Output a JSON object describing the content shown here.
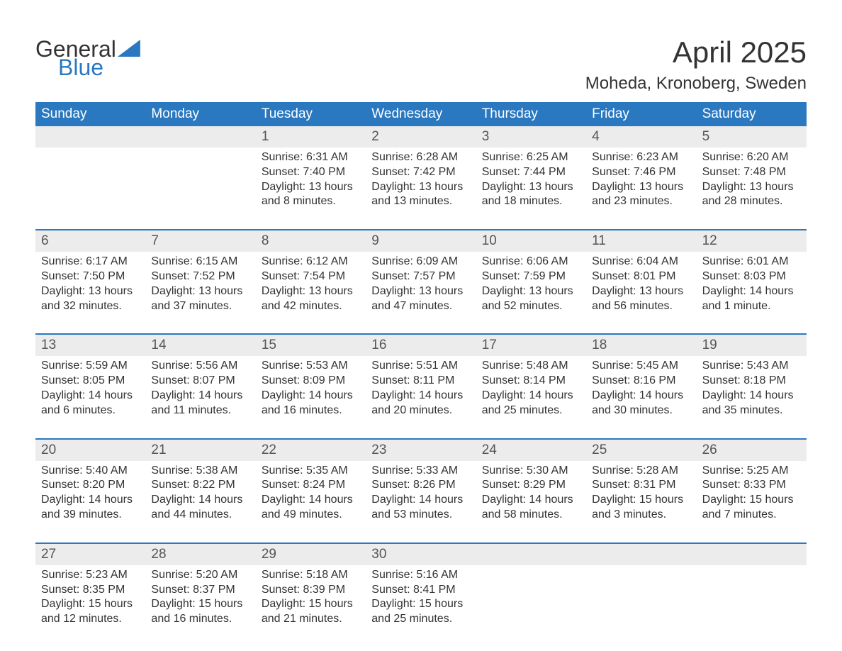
{
  "logo": {
    "word1": "General",
    "word2": "Blue"
  },
  "title": "April 2025",
  "location": "Moheda, Kronoberg, Sweden",
  "colors": {
    "header_bg": "#2a78c0",
    "header_text": "#ffffff",
    "daynum_bg": "#ececec",
    "row_border": "#2a78c0",
    "body_text": "#333333",
    "background": "#ffffff"
  },
  "weekdays": [
    "Sunday",
    "Monday",
    "Tuesday",
    "Wednesday",
    "Thursday",
    "Friday",
    "Saturday"
  ],
  "weeks": [
    [
      {
        "num": "",
        "sunrise": "",
        "sunset": "",
        "daylight": ""
      },
      {
        "num": "",
        "sunrise": "",
        "sunset": "",
        "daylight": ""
      },
      {
        "num": "1",
        "sunrise": "Sunrise: 6:31 AM",
        "sunset": "Sunset: 7:40 PM",
        "daylight": "Daylight: 13 hours and 8 minutes."
      },
      {
        "num": "2",
        "sunrise": "Sunrise: 6:28 AM",
        "sunset": "Sunset: 7:42 PM",
        "daylight": "Daylight: 13 hours and 13 minutes."
      },
      {
        "num": "3",
        "sunrise": "Sunrise: 6:25 AM",
        "sunset": "Sunset: 7:44 PM",
        "daylight": "Daylight: 13 hours and 18 minutes."
      },
      {
        "num": "4",
        "sunrise": "Sunrise: 6:23 AM",
        "sunset": "Sunset: 7:46 PM",
        "daylight": "Daylight: 13 hours and 23 minutes."
      },
      {
        "num": "5",
        "sunrise": "Sunrise: 6:20 AM",
        "sunset": "Sunset: 7:48 PM",
        "daylight": "Daylight: 13 hours and 28 minutes."
      }
    ],
    [
      {
        "num": "6",
        "sunrise": "Sunrise: 6:17 AM",
        "sunset": "Sunset: 7:50 PM",
        "daylight": "Daylight: 13 hours and 32 minutes."
      },
      {
        "num": "7",
        "sunrise": "Sunrise: 6:15 AM",
        "sunset": "Sunset: 7:52 PM",
        "daylight": "Daylight: 13 hours and 37 minutes."
      },
      {
        "num": "8",
        "sunrise": "Sunrise: 6:12 AM",
        "sunset": "Sunset: 7:54 PM",
        "daylight": "Daylight: 13 hours and 42 minutes."
      },
      {
        "num": "9",
        "sunrise": "Sunrise: 6:09 AM",
        "sunset": "Sunset: 7:57 PM",
        "daylight": "Daylight: 13 hours and 47 minutes."
      },
      {
        "num": "10",
        "sunrise": "Sunrise: 6:06 AM",
        "sunset": "Sunset: 7:59 PM",
        "daylight": "Daylight: 13 hours and 52 minutes."
      },
      {
        "num": "11",
        "sunrise": "Sunrise: 6:04 AM",
        "sunset": "Sunset: 8:01 PM",
        "daylight": "Daylight: 13 hours and 56 minutes."
      },
      {
        "num": "12",
        "sunrise": "Sunrise: 6:01 AM",
        "sunset": "Sunset: 8:03 PM",
        "daylight": "Daylight: 14 hours and 1 minute."
      }
    ],
    [
      {
        "num": "13",
        "sunrise": "Sunrise: 5:59 AM",
        "sunset": "Sunset: 8:05 PM",
        "daylight": "Daylight: 14 hours and 6 minutes."
      },
      {
        "num": "14",
        "sunrise": "Sunrise: 5:56 AM",
        "sunset": "Sunset: 8:07 PM",
        "daylight": "Daylight: 14 hours and 11 minutes."
      },
      {
        "num": "15",
        "sunrise": "Sunrise: 5:53 AM",
        "sunset": "Sunset: 8:09 PM",
        "daylight": "Daylight: 14 hours and 16 minutes."
      },
      {
        "num": "16",
        "sunrise": "Sunrise: 5:51 AM",
        "sunset": "Sunset: 8:11 PM",
        "daylight": "Daylight: 14 hours and 20 minutes."
      },
      {
        "num": "17",
        "sunrise": "Sunrise: 5:48 AM",
        "sunset": "Sunset: 8:14 PM",
        "daylight": "Daylight: 14 hours and 25 minutes."
      },
      {
        "num": "18",
        "sunrise": "Sunrise: 5:45 AM",
        "sunset": "Sunset: 8:16 PM",
        "daylight": "Daylight: 14 hours and 30 minutes."
      },
      {
        "num": "19",
        "sunrise": "Sunrise: 5:43 AM",
        "sunset": "Sunset: 8:18 PM",
        "daylight": "Daylight: 14 hours and 35 minutes."
      }
    ],
    [
      {
        "num": "20",
        "sunrise": "Sunrise: 5:40 AM",
        "sunset": "Sunset: 8:20 PM",
        "daylight": "Daylight: 14 hours and 39 minutes."
      },
      {
        "num": "21",
        "sunrise": "Sunrise: 5:38 AM",
        "sunset": "Sunset: 8:22 PM",
        "daylight": "Daylight: 14 hours and 44 minutes."
      },
      {
        "num": "22",
        "sunrise": "Sunrise: 5:35 AM",
        "sunset": "Sunset: 8:24 PM",
        "daylight": "Daylight: 14 hours and 49 minutes."
      },
      {
        "num": "23",
        "sunrise": "Sunrise: 5:33 AM",
        "sunset": "Sunset: 8:26 PM",
        "daylight": "Daylight: 14 hours and 53 minutes."
      },
      {
        "num": "24",
        "sunrise": "Sunrise: 5:30 AM",
        "sunset": "Sunset: 8:29 PM",
        "daylight": "Daylight: 14 hours and 58 minutes."
      },
      {
        "num": "25",
        "sunrise": "Sunrise: 5:28 AM",
        "sunset": "Sunset: 8:31 PM",
        "daylight": "Daylight: 15 hours and 3 minutes."
      },
      {
        "num": "26",
        "sunrise": "Sunrise: 5:25 AM",
        "sunset": "Sunset: 8:33 PM",
        "daylight": "Daylight: 15 hours and 7 minutes."
      }
    ],
    [
      {
        "num": "27",
        "sunrise": "Sunrise: 5:23 AM",
        "sunset": "Sunset: 8:35 PM",
        "daylight": "Daylight: 15 hours and 12 minutes."
      },
      {
        "num": "28",
        "sunrise": "Sunrise: 5:20 AM",
        "sunset": "Sunset: 8:37 PM",
        "daylight": "Daylight: 15 hours and 16 minutes."
      },
      {
        "num": "29",
        "sunrise": "Sunrise: 5:18 AM",
        "sunset": "Sunset: 8:39 PM",
        "daylight": "Daylight: 15 hours and 21 minutes."
      },
      {
        "num": "30",
        "sunrise": "Sunrise: 5:16 AM",
        "sunset": "Sunset: 8:41 PM",
        "daylight": "Daylight: 15 hours and 25 minutes."
      },
      {
        "num": "",
        "sunrise": "",
        "sunset": "",
        "daylight": ""
      },
      {
        "num": "",
        "sunrise": "",
        "sunset": "",
        "daylight": ""
      },
      {
        "num": "",
        "sunrise": "",
        "sunset": "",
        "daylight": ""
      }
    ]
  ]
}
